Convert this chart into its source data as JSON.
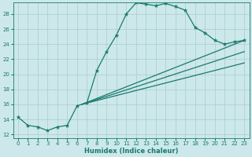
{
  "xlabel": "Humidex (Indice chaleur)",
  "ylabel": "",
  "background_color": "#cce8ea",
  "grid_color": "#aacccc",
  "line_color": "#1a7a6e",
  "xlim": [
    -0.5,
    23.5
  ],
  "ylim": [
    11.5,
    29.5
  ],
  "xticks": [
    0,
    1,
    2,
    3,
    4,
    5,
    6,
    7,
    8,
    9,
    10,
    11,
    12,
    13,
    14,
    15,
    16,
    17,
    18,
    19,
    20,
    21,
    22,
    23
  ],
  "yticks": [
    12,
    14,
    16,
    18,
    20,
    22,
    24,
    26,
    28
  ],
  "curve_x": [
    0,
    1,
    2,
    3,
    4,
    5,
    6,
    7,
    8,
    9,
    10,
    11,
    12,
    13,
    14,
    15,
    16,
    17,
    18,
    19,
    20,
    21,
    22,
    23
  ],
  "curve_y": [
    14.3,
    13.2,
    13.0,
    12.5,
    13.0,
    13.2,
    15.8,
    16.2,
    20.5,
    23.0,
    25.2,
    28.0,
    29.5,
    29.3,
    29.1,
    29.4,
    29.0,
    28.5,
    26.2,
    25.5,
    24.5,
    24.0,
    24.3,
    24.5
  ],
  "line2_x": [
    6.5,
    23
  ],
  "line2_y": [
    16.0,
    24.5
  ],
  "line3_x": [
    6.5,
    23
  ],
  "line3_y": [
    16.0,
    23.0
  ],
  "line4_x": [
    6.5,
    23
  ],
  "line4_y": [
    16.0,
    21.5
  ]
}
